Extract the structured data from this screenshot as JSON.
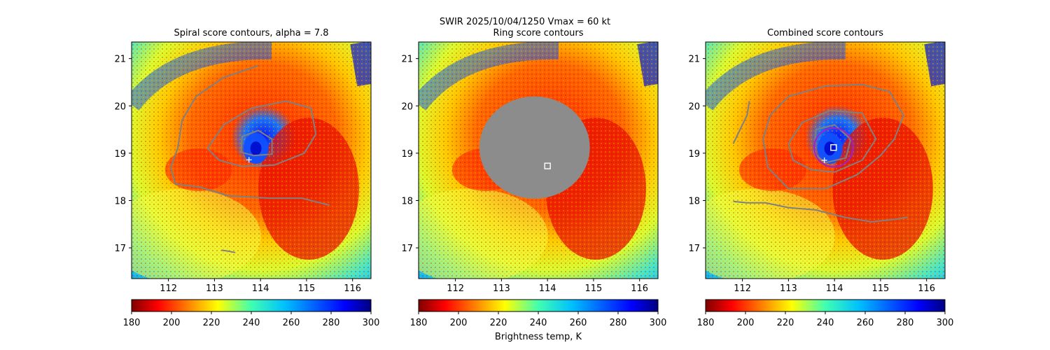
{
  "suptitle": "SWIR  2025/10/04/1250    Vmax = 60 kt",
  "colorbar_label": "Brightness temp, K",
  "colors": {
    "contour": "#808080",
    "ring_fill": "#8c8c8c",
    "circle": "#a020c8",
    "marker": "#ffffff"
  },
  "chart_data": [
    {
      "type": "heatmap",
      "title": "Spiral score contours, alpha =  7.8",
      "xlim": [
        111.2,
        116.4
      ],
      "ylim": [
        16.35,
        21.35
      ],
      "xticks": [
        "112",
        "113",
        "114",
        "115",
        "116"
      ],
      "yticks": [
        "17",
        "18",
        "19",
        "20",
        "21"
      ],
      "colorbar": {
        "cmap": "jet_r",
        "range": [
          180,
          300
        ],
        "ticks": [
          "180",
          "200",
          "220",
          "240",
          "260",
          "280",
          "300"
        ]
      },
      "center_plus": [
        113.75,
        18.86
      ],
      "contours": [
        [
          [
            113.85,
            18.95
          ],
          [
            113.58,
            19.02
          ],
          [
            113.6,
            19.35
          ],
          [
            113.95,
            19.48
          ],
          [
            114.25,
            19.3
          ],
          [
            114.25,
            18.98
          ],
          [
            113.85,
            18.95
          ]
        ],
        [
          [
            112.85,
            19.1
          ],
          [
            113.2,
            19.6
          ],
          [
            113.8,
            19.95
          ],
          [
            114.55,
            20.1
          ],
          [
            115.1,
            19.95
          ],
          [
            115.2,
            19.4
          ],
          [
            114.95,
            19.0
          ],
          [
            114.3,
            18.75
          ],
          [
            113.6,
            18.72
          ],
          [
            113.1,
            18.85
          ],
          [
            112.85,
            19.1
          ]
        ],
        [
          [
            113.95,
            20.85
          ],
          [
            113.2,
            20.6
          ],
          [
            112.6,
            20.2
          ],
          [
            112.3,
            19.7
          ],
          [
            112.2,
            19.1
          ],
          [
            112.05,
            18.7
          ],
          [
            112.15,
            18.35
          ],
          [
            112.7,
            18.28
          ],
          [
            113.3,
            18.1
          ],
          [
            114.2,
            18.05
          ],
          [
            114.9,
            18.05
          ],
          [
            115.5,
            17.9
          ]
        ],
        [
          [
            113.15,
            16.95
          ],
          [
            113.3,
            16.93
          ],
          [
            113.45,
            16.9
          ]
        ]
      ]
    },
    {
      "type": "heatmap",
      "title": "Ring score contours",
      "xlim": [
        111.2,
        116.4
      ],
      "ylim": [
        16.35,
        21.35
      ],
      "xticks": [
        "112",
        "113",
        "114",
        "115",
        "116"
      ],
      "yticks": [
        "17",
        "18",
        "19",
        "20",
        "21"
      ],
      "colorbar": {
        "cmap": "jet_r",
        "range": [
          180,
          300
        ],
        "ticks": [
          "180",
          "200",
          "220",
          "240",
          "260",
          "280",
          "300"
        ]
      },
      "ring_score_region": {
        "center": [
          113.72,
          19.12
        ],
        "radius_deg": [
          1.2,
          1.08
        ]
      },
      "center_square": [
        114.0,
        18.73
      ]
    },
    {
      "type": "heatmap",
      "title": "Combined score contours",
      "xlim": [
        111.2,
        116.4
      ],
      "ylim": [
        16.35,
        21.35
      ],
      "xticks": [
        "112",
        "113",
        "114",
        "115",
        "116"
      ],
      "yticks": [
        "17",
        "18",
        "19",
        "20",
        "21"
      ],
      "colorbar": {
        "cmap": "jet_r",
        "range": [
          180,
          300
        ],
        "ticks": [
          "180",
          "200",
          "220",
          "240",
          "260",
          "280",
          "300"
        ]
      },
      "center_plus": [
        113.78,
        18.85
      ],
      "center_square": [
        113.98,
        19.12
      ],
      "circle": {
        "center": [
          113.98,
          19.12
        ],
        "radius_deg": 0.42
      },
      "contours": [
        [
          [
            113.55,
            19.0
          ],
          [
            113.6,
            19.5
          ],
          [
            114.0,
            19.6
          ],
          [
            114.35,
            19.3
          ],
          [
            114.25,
            18.9
          ],
          [
            113.8,
            18.8
          ],
          [
            113.55,
            19.0
          ]
        ],
        [
          [
            113.0,
            19.2
          ],
          [
            113.3,
            19.65
          ],
          [
            113.9,
            19.9
          ],
          [
            114.6,
            19.85
          ],
          [
            114.9,
            19.3
          ],
          [
            114.6,
            18.85
          ],
          [
            114.0,
            18.6
          ],
          [
            113.5,
            18.65
          ],
          [
            113.1,
            18.85
          ],
          [
            113.0,
            19.2
          ]
        ],
        [
          [
            112.55,
            18.7
          ],
          [
            112.45,
            19.3
          ],
          [
            112.6,
            19.8
          ],
          [
            113.0,
            20.2
          ],
          [
            113.8,
            20.42
          ],
          [
            114.6,
            20.45
          ],
          [
            115.2,
            20.3
          ],
          [
            115.5,
            19.8
          ],
          [
            115.3,
            19.3
          ],
          [
            115.0,
            18.95
          ],
          [
            114.5,
            18.55
          ],
          [
            113.8,
            18.25
          ],
          [
            113.0,
            18.25
          ],
          [
            112.55,
            18.7
          ]
        ],
        [
          [
            111.8,
            19.2
          ],
          [
            111.95,
            19.5
          ],
          [
            112.1,
            19.8
          ],
          [
            112.15,
            20.1
          ]
        ],
        [
          [
            111.8,
            17.98
          ],
          [
            112.1,
            17.95
          ],
          [
            112.5,
            17.95
          ],
          [
            113.0,
            17.85
          ],
          [
            113.6,
            17.8
          ],
          [
            114.2,
            17.65
          ],
          [
            114.8,
            17.55
          ],
          [
            115.3,
            17.6
          ],
          [
            115.6,
            17.65
          ]
        ]
      ]
    }
  ]
}
